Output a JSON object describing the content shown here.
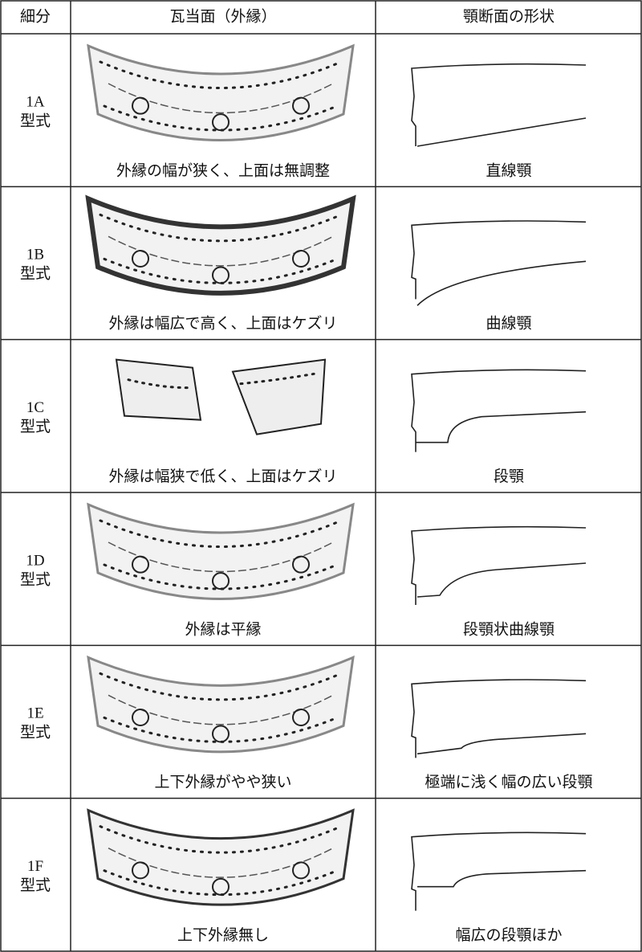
{
  "table": {
    "header": [
      "細分",
      "瓦当面（外縁）",
      "顎断面の形状"
    ],
    "rows": [
      {
        "id": "1A",
        "kind": "型式",
        "face": "外縁の幅が狭く、上面は無調整",
        "section": "直線顎"
      },
      {
        "id": "1B",
        "kind": "型式",
        "face": "外縁は幅広で高く、上面はケズリ",
        "section": "曲線顎"
      },
      {
        "id": "1C",
        "kind": "型式",
        "face": "外縁は幅狭で低く、上面はケズリ",
        "section": "段顎"
      },
      {
        "id": "1D",
        "kind": "型式",
        "face": "外縁は平縁",
        "section": "段顎状曲線顎"
      },
      {
        "id": "1E",
        "kind": "型式",
        "face": "上下外縁がやや狭い",
        "section": "極端に浅く幅の広い段顎"
      },
      {
        "id": "1F",
        "kind": "型式",
        "face": "上下外縁無し",
        "section": "幅広の段顎ほか"
      }
    ]
  }
}
